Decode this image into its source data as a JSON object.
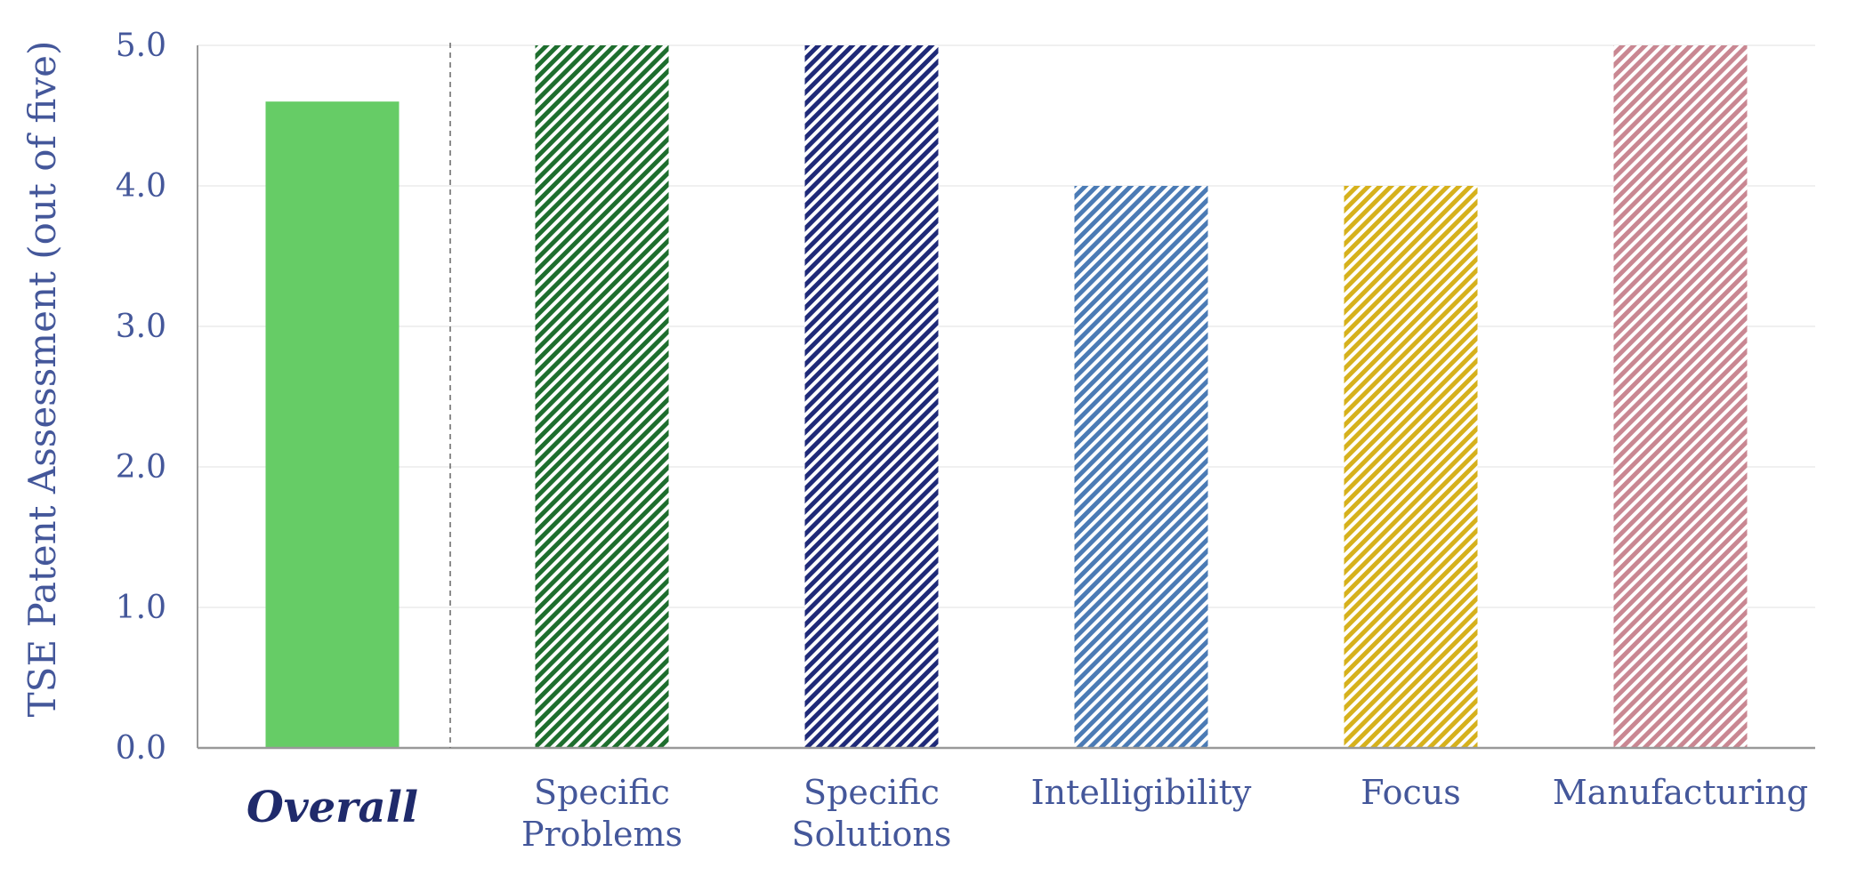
{
  "chart_data": {
    "type": "bar",
    "title": "",
    "xlabel": "",
    "ylabel": "TSE Patent Assessment (out of five)",
    "ylim": [
      0,
      5
    ],
    "yticks": [
      "0.0",
      "1.0",
      "2.0",
      "3.0",
      "4.0",
      "5.0"
    ],
    "grid": true,
    "categories": [
      [
        "Overall"
      ],
      [
        "Specific",
        "Problems"
      ],
      [
        "Specific",
        "Solutions"
      ],
      [
        "Intelligibility"
      ],
      [
        "Focus"
      ],
      [
        "Manufacturing"
      ]
    ],
    "values": [
      4.6,
      5.0,
      5.0,
      4.0,
      4.0,
      5.0
    ],
    "fills": [
      "solid",
      "hatched",
      "hatched",
      "hatched",
      "hatched",
      "hatched"
    ],
    "colors": [
      "#66cc66",
      "#1e6e2e",
      "#1f2a78",
      "#4b7bb5",
      "#d6b11c",
      "#c98792"
    ],
    "highlight_category": "Overall"
  }
}
